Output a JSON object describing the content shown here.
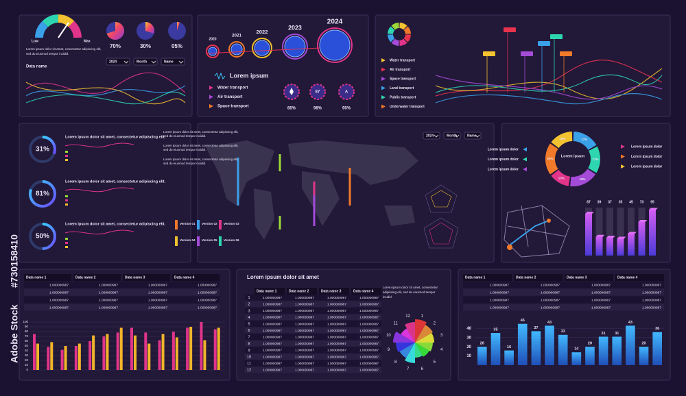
{
  "watermark": {
    "brand": "Adobe Stock",
    "id": "#730158410"
  },
  "panel_gauge": {
    "low": "Low",
    "max": "Max",
    "text": [
      "Lorem ipsum dolor sit amet, consectetur adipiscing elit,",
      "sed do eiusmod tempor incidid."
    ],
    "dials": [
      {
        "value": 70,
        "label": "70%"
      },
      {
        "value": 30,
        "label": "30%"
      },
      {
        "value": 5,
        "label": "05%"
      }
    ],
    "data_name": "Data name",
    "dropdowns": [
      "2024",
      "Month",
      "Name"
    ]
  },
  "timeline": {
    "years": [
      "2020",
      "2021",
      "2022",
      "2023",
      "2024"
    ],
    "title": "Lorem ipsum",
    "legend": [
      "Water transport",
      "Air transport",
      "Space transport"
    ],
    "badges": [
      {
        "label": "85%"
      },
      {
        "icon": "87",
        "label": "98%"
      },
      {
        "icon": "A",
        "label": "95%"
      }
    ]
  },
  "transport": {
    "legend": [
      "Water transport",
      "Air transport",
      "Space transport",
      "Land transport",
      "Public transport",
      "Underwater transport"
    ],
    "colors": [
      "#f2c230",
      "#e8334f",
      "#a44bd8",
      "#3aa0e8",
      "#2ed6b0",
      "#f07a2a"
    ]
  },
  "rings": {
    "items": [
      {
        "value": 31,
        "label": "31%"
      },
      {
        "value": 81,
        "label": "81%"
      },
      {
        "value": 50,
        "label": "50%"
      }
    ],
    "text": "Lorem ipsum dolor sit amet, consectetur adipiscing elit."
  },
  "map": {
    "text": [
      "Lorem ipsum dolor sit amet, consectetur adipiscing elit,",
      "sed do eiusmod tempor incidid."
    ],
    "dropdowns": [
      "2024",
      "Month",
      "Name"
    ],
    "versions": [
      "Version 01",
      "Version 02",
      "Version 03",
      "Version 04",
      "Version 05",
      "Version 06"
    ]
  },
  "segments": {
    "center": "Lorem ipsum",
    "labels": [
      "Lorem ipsum dolor",
      "Lorem ipsum dolor",
      "Lorem ipsum dolor",
      "Lorem ipsum dolor",
      "Lorem ipsum dolor",
      "Lorem ipsum dolor"
    ],
    "values": [
      {
        "value": 17,
        "label": "17%"
      },
      {
        "value": 17,
        "label": "17%"
      },
      {
        "value": 18,
        "label": "18%"
      },
      {
        "value": 13,
        "label": "13%"
      },
      {
        "value": 20,
        "label": "20%"
      },
      {
        "value": 15,
        "label": "15%"
      }
    ]
  },
  "bars3d": {
    "values": [
      87,
      39,
      37,
      35,
      45,
      70,
      95
    ],
    "ylim": [
      0,
      100
    ]
  },
  "table_left": {
    "headers": [
      "Data name 1",
      "Data name 2",
      "Data name 3",
      "Data name 4"
    ],
    "rows": [
      [
        "1.000000987",
        "1.000000987",
        "1.000000987",
        "1.000000987"
      ],
      [
        "1.000000987",
        "1.000000987",
        "1.000000987",
        "1.000000987"
      ],
      [
        "1.000000987",
        "1.000000987",
        "1.000000987",
        "1.000000987"
      ],
      [
        "1.000000987",
        "1.000000987",
        "1.000000987",
        "1.000000987"
      ]
    ]
  },
  "bars_left": {
    "ylim": [
      0,
      100
    ],
    "yticks": [
      0,
      10,
      20,
      30,
      40,
      50,
      60,
      70,
      80,
      90,
      100
    ],
    "series": [
      {
        "color": "#e0358a",
        "values": [
          75,
          48,
          42,
          50,
          60,
          70,
          78,
          88,
          78,
          62,
          80,
          88,
          100,
          85
        ]
      },
      {
        "color": "#f2b52a",
        "values": [
          55,
          58,
          50,
          55,
          72,
          75,
          88,
          72,
          55,
          75,
          68,
          90,
          62,
          88
        ]
      }
    ]
  },
  "table_mid": {
    "title": "Lorem ipsum dolor sit amet",
    "headers": [
      "Data name 1",
      "Data name 2",
      "Data name 3",
      "Data name 4"
    ],
    "rows": [
      [
        "1",
        "1.000000987",
        "1.000000987",
        "1.000000987",
        "1.000000987"
      ],
      [
        "2",
        "1.000000987",
        "1.000000987",
        "1.000000987",
        "1.000000987"
      ],
      [
        "3",
        "1.000000987",
        "1.000000987",
        "1.000000987",
        "1.000000987"
      ],
      [
        "4",
        "1.000000987",
        "1.000000987",
        "1.000000987",
        "1.000000987"
      ],
      [
        "5",
        "1.000000987",
        "1.000000987",
        "1.000000987",
        "1.000000987"
      ],
      [
        "6",
        "1.000000987",
        "1.000000987",
        "1.000000987",
        "1.000000987"
      ],
      [
        "7",
        "1.000000987",
        "1.000000987",
        "1.000000987",
        "1.000000987"
      ],
      [
        "8",
        "1.000000987",
        "1.000000987",
        "1.000000987",
        "1.000000987"
      ],
      [
        "9",
        "1.000000987",
        "1.000000987",
        "1.000000987",
        "1.000000987"
      ],
      [
        "10",
        "1.000000987",
        "1.000000987",
        "1.000000987",
        "1.000000987"
      ],
      [
        "11",
        "1.000000987",
        "1.000000987",
        "1.000000987",
        "1.000000987"
      ],
      [
        "12",
        "1.000000987",
        "1.000000987",
        "1.000000987",
        "1.000000987"
      ]
    ],
    "text": [
      "Lorem ipsum dolor sit amet, consectetur",
      "adipiscing elit, sed do eiusmod tempor",
      "incidid."
    ]
  },
  "polar": {
    "labels": [
      "1",
      "2",
      "3",
      "4",
      "5",
      "6",
      "7",
      "8",
      "9",
      "10",
      "11",
      "12"
    ],
    "values": [
      34,
      30,
      28,
      26,
      24,
      22,
      30,
      26,
      28,
      32,
      24,
      30
    ]
  },
  "table_right": {
    "headers": [
      "Data name 1",
      "Data name 2",
      "Data name 3",
      "Data name 4"
    ],
    "rows": [
      [
        "1.000000987",
        "1.000000987",
        "1.000000987",
        "1.000000987"
      ],
      [
        "1.000000987",
        "1.000000987",
        "1.000000987",
        "1.000000987"
      ],
      [
        "1.000000987",
        "1.000000987",
        "1.000000987",
        "1.000000987"
      ],
      [
        "1.000000987",
        "1.000000987",
        "1.000000987",
        "1.000000987"
      ]
    ]
  },
  "bars_right": {
    "ylim": [
      0,
      47
    ],
    "yticks": [
      10,
      20,
      30,
      40
    ],
    "values": [
      20,
      35,
      16,
      45,
      37,
      43,
      33,
      14,
      20,
      31,
      31,
      43,
      20,
      36
    ]
  }
}
